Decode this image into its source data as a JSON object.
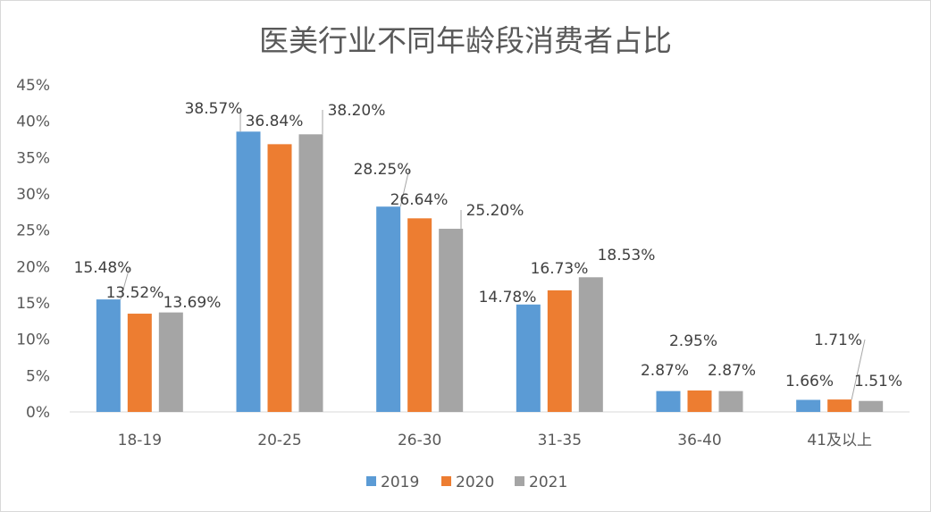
{
  "chart_data": {
    "type": "bar",
    "title": "医美行业不同年龄段消费者占比",
    "xlabel": "",
    "ylabel": "",
    "categories": [
      "18-19",
      "20-25",
      "26-30",
      "31-35",
      "36-40",
      "41及以上"
    ],
    "series": [
      {
        "name": "2019",
        "color": "#5B9BD5",
        "values": [
          15.48,
          38.57,
          28.25,
          14.78,
          2.87,
          1.66
        ],
        "labels": [
          "15.48%",
          "38.57%",
          "28.25%",
          "14.78%",
          "2.87%",
          "1.66%"
        ]
      },
      {
        "name": "2020",
        "color": "#ED7D31",
        "values": [
          13.52,
          36.84,
          26.64,
          16.73,
          2.95,
          1.71
        ],
        "labels": [
          "13.52%",
          "36.84%",
          "26.64%",
          "16.73%",
          "2.95%",
          "1.71%"
        ]
      },
      {
        "name": "2021",
        "color": "#A5A5A5",
        "values": [
          13.69,
          38.2,
          25.2,
          18.53,
          2.87,
          1.51
        ],
        "labels": [
          "13.69%",
          "38.20%",
          "25.20%",
          "18.53%",
          "2.87%",
          "1.51%"
        ]
      }
    ],
    "ylim": [
      0,
      45
    ],
    "yticks": [
      "0%",
      "5%",
      "10%",
      "15%",
      "20%",
      "25%",
      "30%",
      "35%",
      "40%",
      "45%"
    ],
    "grid": false,
    "legend": "bottom"
  }
}
